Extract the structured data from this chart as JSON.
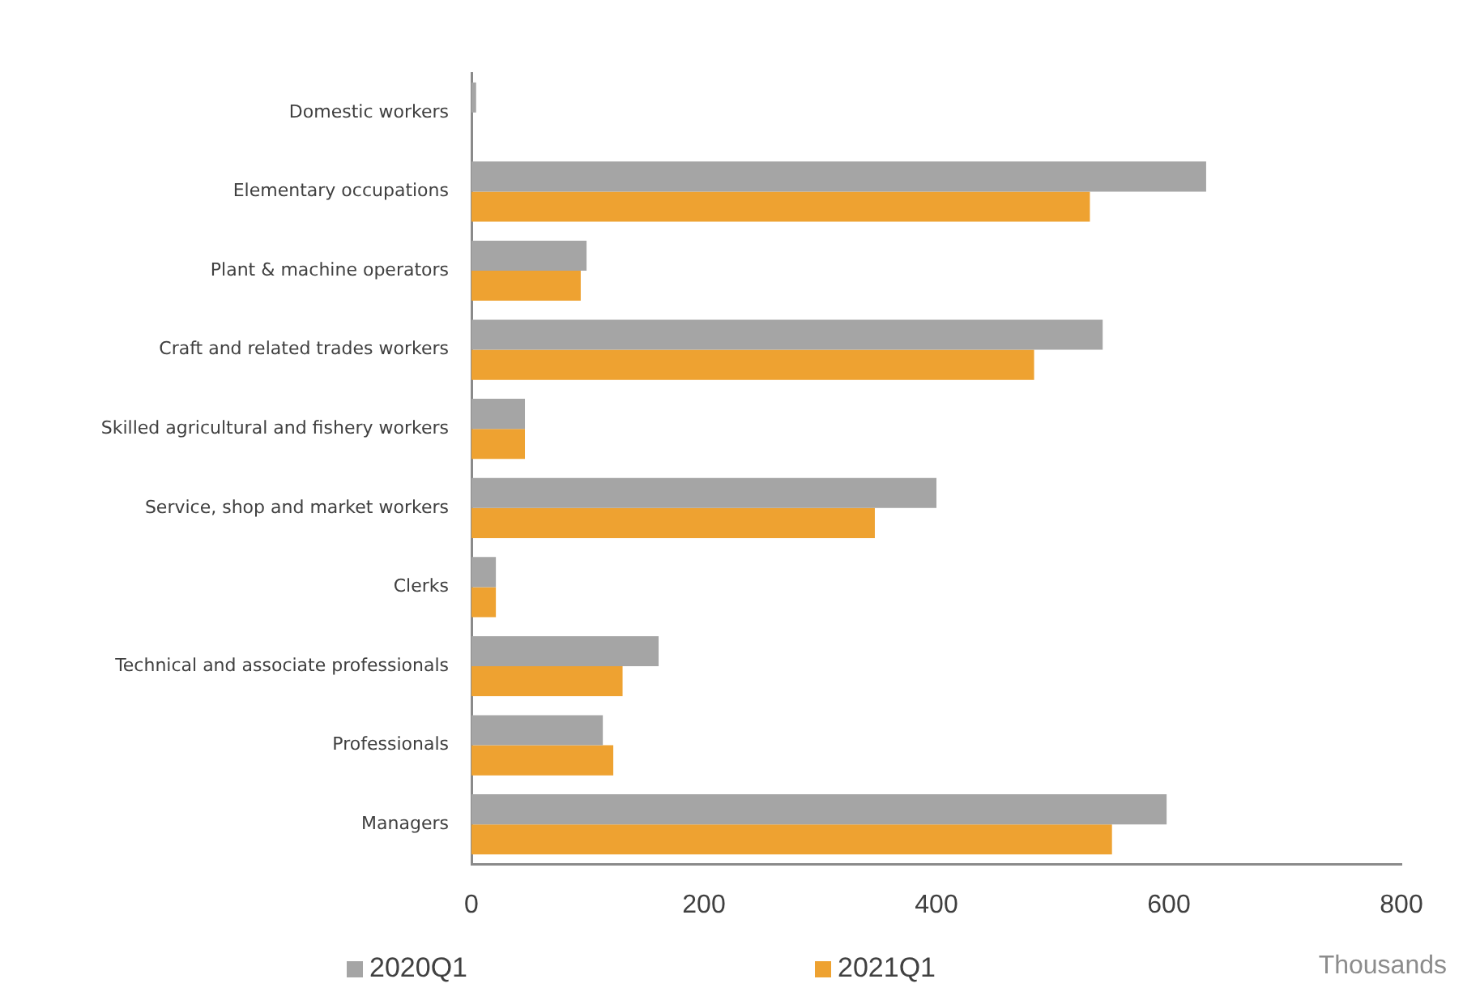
{
  "chart_data": {
    "type": "bar",
    "orientation": "horizontal",
    "categories": [
      "Domestic workers",
      "Elementary occupations",
      "Plant & machine operators",
      "Craft and related trades workers",
      "Skilled agricultural and fishery workers",
      "Service, shop and market workers",
      "Clerks",
      "Technical and associate professionals",
      "Professionals",
      "Managers"
    ],
    "series": [
      {
        "name": "2020Q1",
        "color": "#a5a5a5",
        "values": [
          4,
          632,
          99,
          543,
          46,
          400,
          21,
          161,
          113,
          598
        ]
      },
      {
        "name": "2021Q1",
        "color": "#eea231",
        "values": [
          null,
          532,
          94,
          484,
          46,
          347,
          21,
          130,
          122,
          551
        ]
      }
    ],
    "xlabel": "Thousands",
    "xlim": [
      0,
      800
    ],
    "xticks": [
      0,
      200,
      400,
      600,
      800
    ],
    "grid": false,
    "legend": "bottom"
  }
}
